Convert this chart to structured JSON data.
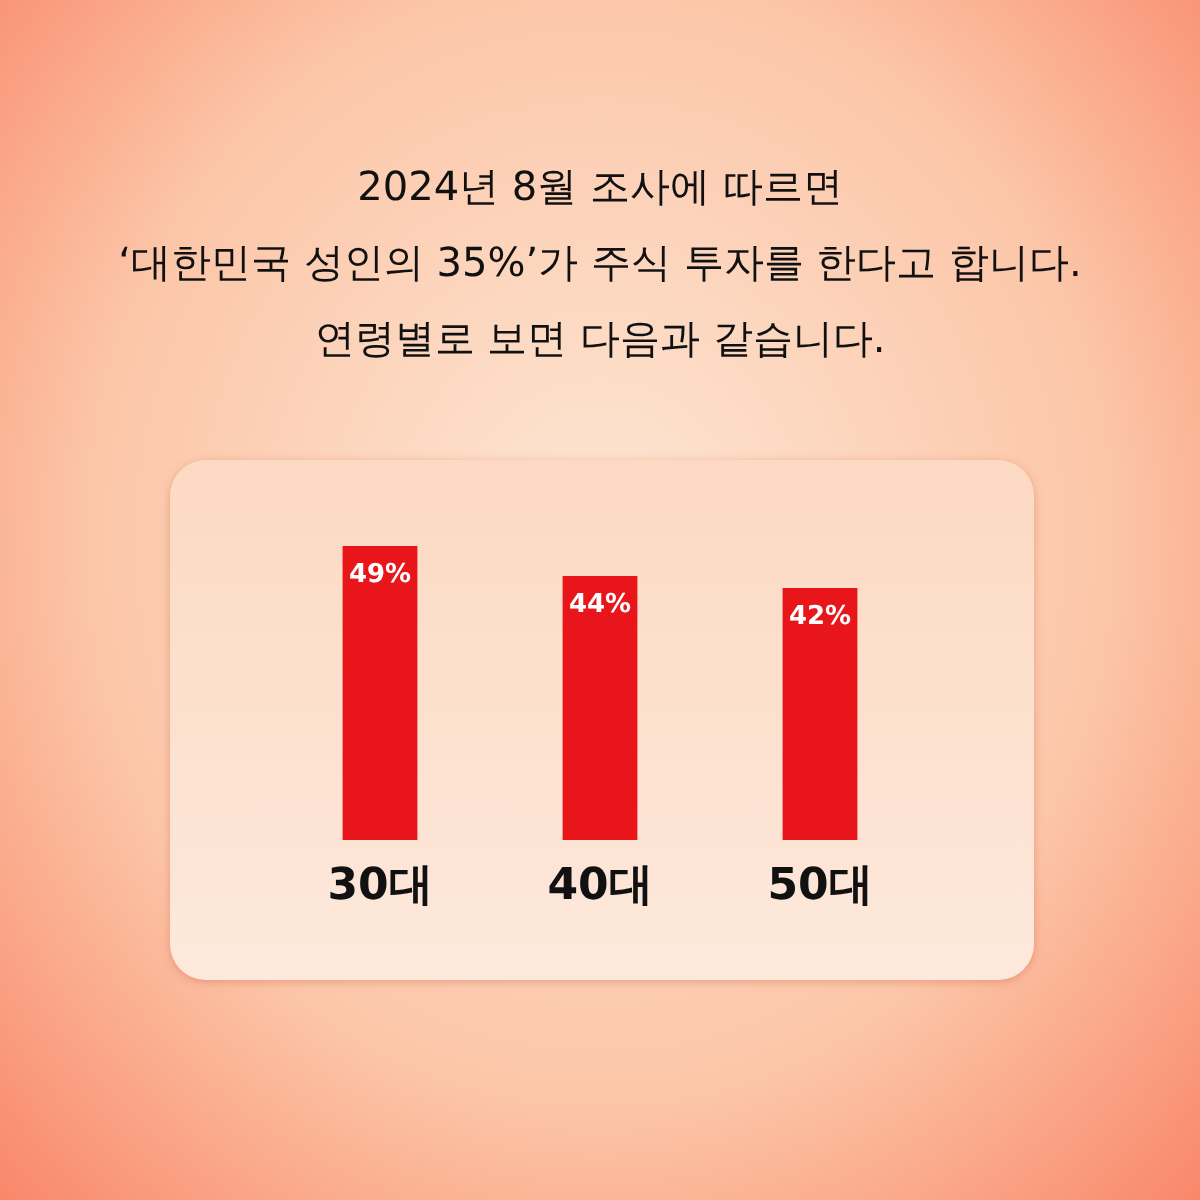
{
  "chart_data": {
    "type": "bar",
    "title": [
      "2024년 8월 조사에 따르면",
      "‘대한민국 성인의 35%’가 주식 투자를 한다고 합니다.",
      "연령별로 보면 다음과 같습니다."
    ],
    "categories": [
      "30대",
      "40대",
      "50대"
    ],
    "values": [
      49,
      44,
      42
    ],
    "value_labels": [
      "49%",
      "44%",
      "42%"
    ],
    "color": "#e8151b"
  }
}
